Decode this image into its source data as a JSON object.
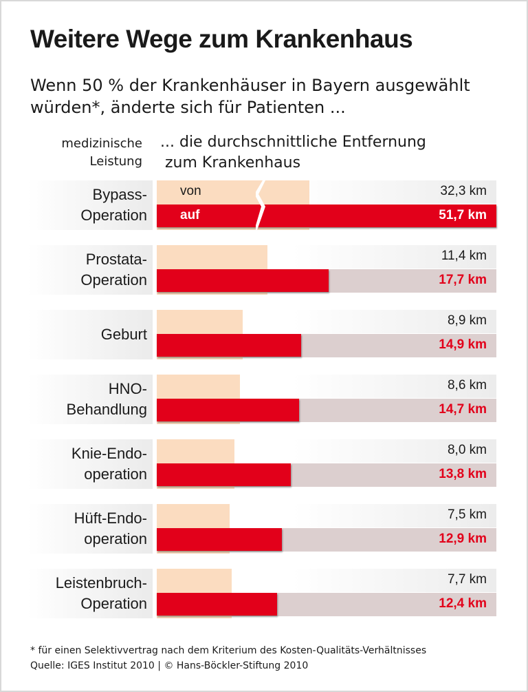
{
  "title": "Weitere Wege zum Krankenhaus",
  "subtitle": "Wenn 50 % der Krankenhäuser in Bayern ausgewählt würden*, änderte sich für Patienten ...",
  "colors": {
    "before": "#fbdcc0",
    "after": "#e2001a",
    "track": "#dccfcf"
  },
  "chart_data": {
    "type": "bar",
    "category_header": "medizinische\nLeistung",
    "value_header": "... die durchschnittliche Entfernung\n zum Krankenhaus",
    "unit": "km",
    "series_labels": {
      "before": "von",
      "after": "auf"
    },
    "categories": [
      "Bypass-\nOperation",
      "Prostata-\nOperation",
      "Geburt",
      "HNO-\nBehandlung",
      "Knie-Endo-\noperation",
      "Hüft-Endo-\noperation",
      "Leistenbruch-\nOperation"
    ],
    "series": [
      {
        "name": "von",
        "values": [
          32.3,
          11.4,
          8.9,
          8.6,
          8.0,
          7.5,
          7.7
        ],
        "labels": [
          "32,3 km",
          "11,4 km",
          "8,9 km",
          "8,6 km",
          "8,0 km",
          "7,5 km",
          "7,7 km"
        ]
      },
      {
        "name": "auf",
        "values": [
          51.7,
          17.7,
          14.9,
          14.7,
          13.8,
          12.9,
          12.4
        ],
        "labels": [
          "51,7 km",
          "17,7 km",
          "14,9 km",
          "14,7 km",
          "13,8 km",
          "12,9 km",
          "12,4 km"
        ]
      }
    ],
    "axis_break_rows": [
      0
    ]
  },
  "footer": {
    "note": "* für einen Selektivvertrag nach dem Kriterium des Kosten-Qualitäts-Verhältnisses",
    "source": "Quelle: IGES Institut 2010 | © Hans-Böckler-Stiftung 2010"
  }
}
